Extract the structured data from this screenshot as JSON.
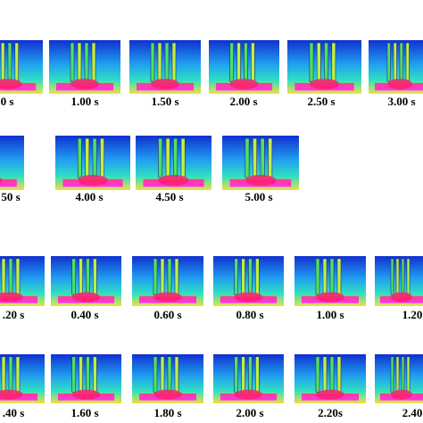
{
  "rows": [
    {
      "labels": [
        "0 s",
        "1.00 s",
        "1.50 s",
        "2.00 s",
        "2.50 s",
        "3.00 s"
      ]
    },
    {
      "labels": [
        "50 s",
        "4.00 s",
        "4.50 s",
        "5.00 s"
      ]
    },
    {
      "labels": [
        ".20 s",
        "0.40 s",
        "0.60 s",
        "0.80 s",
        "1.00 s",
        "1.20"
      ]
    },
    {
      "labels": [
        ".40 s",
        "1.60 s",
        "1.80 s",
        "2.00 s",
        "2.20s",
        "2.40"
      ]
    }
  ]
}
